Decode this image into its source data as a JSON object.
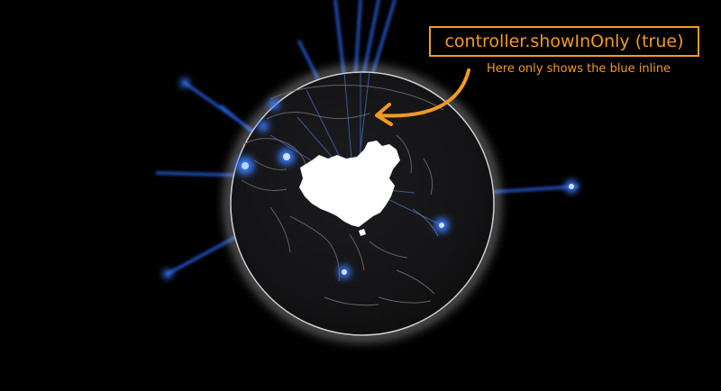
{
  "annotation": {
    "code_label": "controller.showInOnly (true)",
    "note": "Here only shows the blue inline"
  },
  "colors": {
    "background": "#000000",
    "globe": "#141416",
    "globe_edge_glow": "#d9d9d9",
    "country_outline": "#707070",
    "highlighted_country": "#ffffff",
    "inline_beam": "#3b7bff",
    "annotation_accent": "#f29a24"
  },
  "icons": {
    "pointer": "curved-arrow-icon"
  }
}
